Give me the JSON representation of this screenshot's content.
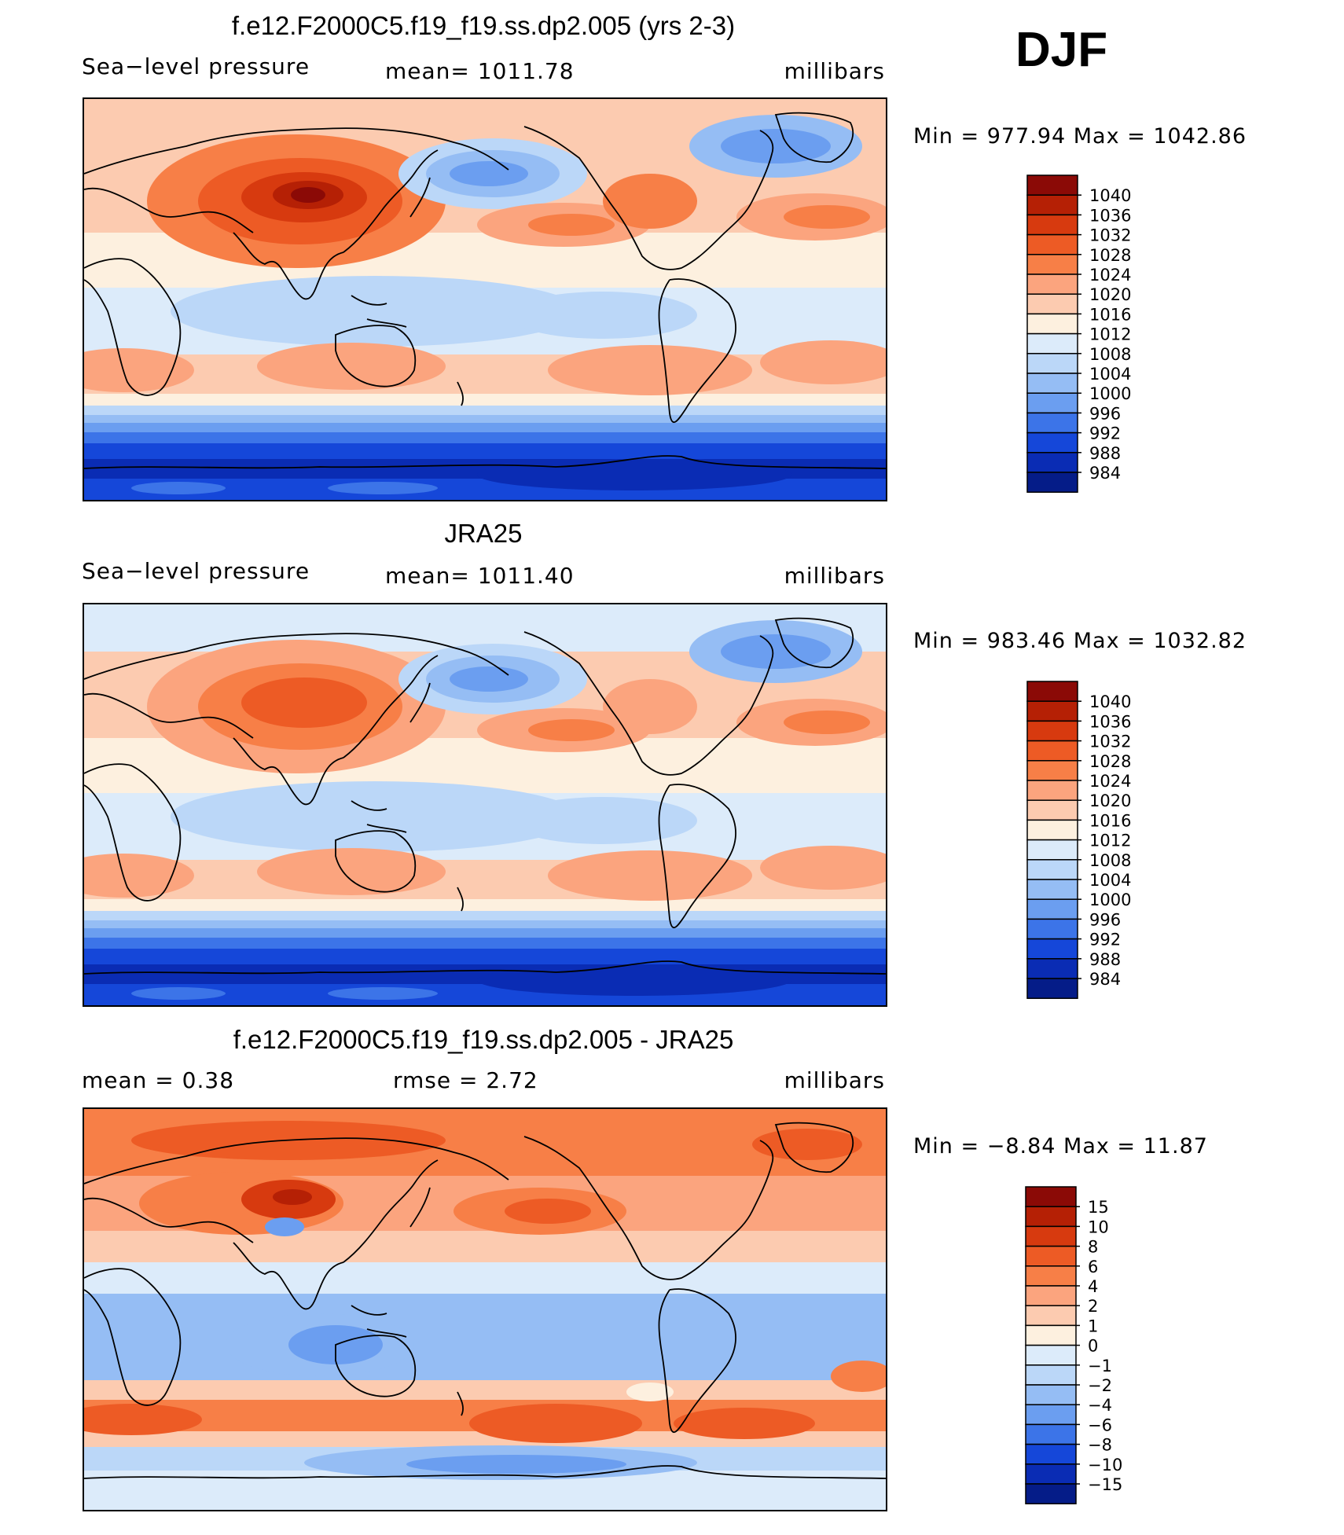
{
  "season": "DJF",
  "panels": [
    {
      "id": "model",
      "title": "f.e12.F2000C5.f19_f19.ss.dp2.005 (yrs 2-3)",
      "left_label": "Sea−level pressure",
      "center_label": "mean=  1011.78",
      "units": "millibars",
      "minmax": "Min  =  977.94  Max  =  1042.86",
      "colorbar": {
        "labels": [
          "1040",
          "1036",
          "1032",
          "1028",
          "1024",
          "1020",
          "1016",
          "1012",
          "1008",
          "1004",
          "1000",
          "996",
          "992",
          "988",
          "984"
        ],
        "colors": [
          "#8b0a06",
          "#b52005",
          "#d73a0f",
          "#ed5b25",
          "#f77f47",
          "#fba47e",
          "#fccbb0",
          "#fdf0df",
          "#dcebfa",
          "#bbd7f8",
          "#95bdf4",
          "#6b9ef0",
          "#3c74e8",
          "#1547d9",
          "#0a2cb4",
          "#051c88"
        ]
      }
    },
    {
      "id": "obs",
      "title": "JRA25",
      "left_label": "Sea−level pressure",
      "center_label": "mean=  1011.40",
      "units": "millibars",
      "minmax": "Min  =  983.46  Max  =  1032.82",
      "colorbar": {
        "labels": [
          "1040",
          "1036",
          "1032",
          "1028",
          "1024",
          "1020",
          "1016",
          "1012",
          "1008",
          "1004",
          "1000",
          "996",
          "992",
          "988",
          "984"
        ],
        "colors": [
          "#8b0a06",
          "#b52005",
          "#d73a0f",
          "#ed5b25",
          "#f77f47",
          "#fba47e",
          "#fccbb0",
          "#fdf0df",
          "#dcebfa",
          "#bbd7f8",
          "#95bdf4",
          "#6b9ef0",
          "#3c74e8",
          "#1547d9",
          "#0a2cb4",
          "#051c88"
        ]
      }
    },
    {
      "id": "diff",
      "title": "f.e12.F2000C5.f19_f19.ss.dp2.005 - JRA25",
      "left_label": "mean  =     0.38",
      "center_label": "rmse  =     2.72",
      "units": "millibars",
      "minmax": "Min  =    −8.84  Max  =     11.87",
      "colorbar": {
        "labels": [
          "15",
          "10",
          "8",
          "6",
          "4",
          "2",
          "1",
          "0",
          "−1",
          "−2",
          "−4",
          "−6",
          "−8",
          "−10",
          "−15"
        ],
        "colors": [
          "#8b0a06",
          "#b52005",
          "#d73a0f",
          "#ed5b25",
          "#f77f47",
          "#fba47e",
          "#fccbb0",
          "#fdf0df",
          "#dcebfa",
          "#bbd7f8",
          "#95bdf4",
          "#6b9ef0",
          "#3c74e8",
          "#1547d9",
          "#0a2cb4",
          "#051c88"
        ]
      }
    }
  ]
}
